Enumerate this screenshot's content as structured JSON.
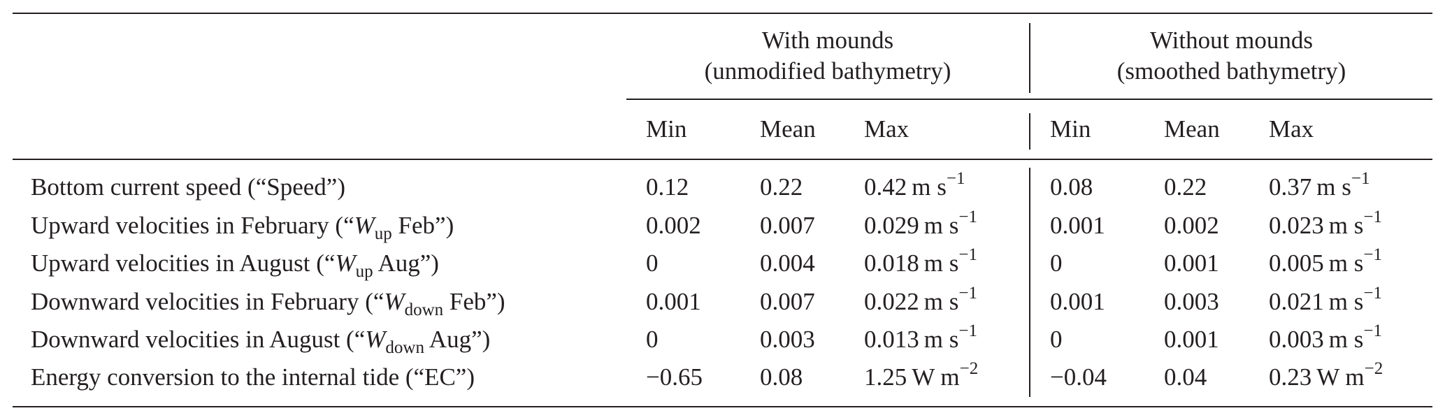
{
  "groups": [
    {
      "title": "With mounds",
      "subtitle": "(unmodified bathymetry)"
    },
    {
      "title": "Without mounds",
      "subtitle": "(smoothed bathymetry)"
    }
  ],
  "subheaders": [
    "Min",
    "Mean",
    "Max",
    "Min",
    "Mean",
    "Max"
  ],
  "rows": [
    {
      "label_pre": "Bottom current speed (“Speed”)",
      "label_var": "",
      "label_sub": "",
      "label_post": "",
      "with": {
        "min": "0.12",
        "mean": "0.22",
        "max": "0.42"
      },
      "without": {
        "min": "0.08",
        "mean": "0.22",
        "max": "0.37"
      },
      "unit": "m s",
      "exp": "−1"
    },
    {
      "label_pre": "Upward velocities in February (“",
      "label_var": "W",
      "label_sub": "up",
      "label_post": " Feb”)",
      "with": {
        "min": "0.002",
        "mean": "0.007",
        "max": "0.029"
      },
      "without": {
        "min": "0.001",
        "mean": "0.002",
        "max": "0.023"
      },
      "unit": "m s",
      "exp": "−1"
    },
    {
      "label_pre": "Upward velocities in August (“",
      "label_var": "W",
      "label_sub": "up",
      "label_post": " Aug”)",
      "with": {
        "min": "0",
        "mean": "0.004",
        "max": "0.018"
      },
      "without": {
        "min": "0",
        "mean": "0.001",
        "max": "0.005"
      },
      "unit": "m s",
      "exp": "−1"
    },
    {
      "label_pre": "Downward velocities in February (“",
      "label_var": "W",
      "label_sub": "down",
      "label_post": " Feb”)",
      "with": {
        "min": "0.001",
        "mean": "0.007",
        "max": "0.022"
      },
      "without": {
        "min": "0.001",
        "mean": "0.003",
        "max": "0.021"
      },
      "unit": "m s",
      "exp": "−1"
    },
    {
      "label_pre": "Downward velocities in August (“",
      "label_var": "W",
      "label_sub": "down",
      "label_post": " Aug”)",
      "with": {
        "min": "0",
        "mean": "0.003",
        "max": "0.013"
      },
      "without": {
        "min": "0",
        "mean": "0.001",
        "max": "0.003"
      },
      "unit": "m s",
      "exp": "−1"
    },
    {
      "label_pre": "Energy conversion to the internal tide (“EC”)",
      "label_var": "",
      "label_sub": "",
      "label_post": "",
      "with": {
        "min": "−0.65",
        "mean": "0.08",
        "max": "1.25"
      },
      "without": {
        "min": "−0.04",
        "mean": "0.04",
        "max": "0.23"
      },
      "unit": "W m",
      "exp": "−2"
    }
  ]
}
